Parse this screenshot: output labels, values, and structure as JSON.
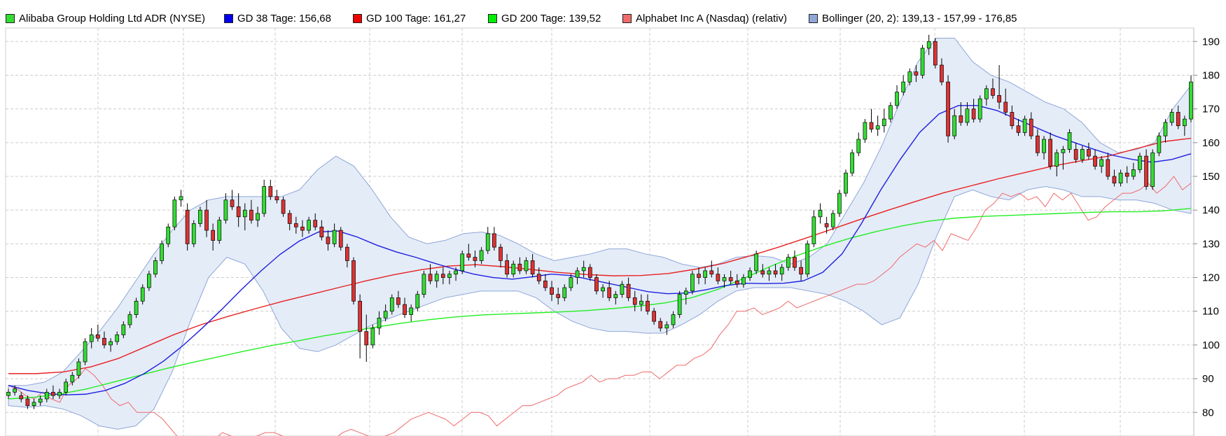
{
  "legend": [
    {
      "label": "Alibaba Group Holding Ltd ADR (NYSE)",
      "color": "#33dd33"
    },
    {
      "label": "GD 38 Tage: 156,68",
      "color": "#0000ee"
    },
    {
      "label": "GD 100 Tage: 161,27",
      "color": "#ee0000"
    },
    {
      "label": "GD 200 Tage: 139,52",
      "color": "#00ee00"
    },
    {
      "label": "Alphabet Inc A (Nasdaq) (relativ)",
      "color": "#f06a6a"
    },
    {
      "label": "Bollinger (20, 2): 139,13 - 157,99 - 176,85",
      "color": "#8fa6d6"
    }
  ],
  "chart_data": {
    "type": "candlestick",
    "y_axis_side": "right",
    "y_ticks": [
      80,
      90,
      100,
      110,
      120,
      130,
      140,
      150,
      160,
      170,
      180,
      190
    ],
    "ylim": [
      73,
      194
    ],
    "grid": true,
    "colors": {
      "up_candle": "#33dd33",
      "down_candle": "#dd3333",
      "gd38": "#1f1fe0",
      "gd100": "#e82020",
      "gd200": "#22ee22",
      "relative": "#f06a6a",
      "bollinger_fill": "#e4ecf8",
      "bollinger_edge": "#8fa6d6"
    },
    "candles": [
      [
        85,
        87,
        84,
        86
      ],
      [
        86,
        88,
        85,
        87
      ],
      [
        85,
        86,
        83,
        84
      ],
      [
        84,
        85,
        81,
        82
      ],
      [
        82,
        84,
        81,
        83
      ],
      [
        83,
        85,
        82,
        84
      ],
      [
        84,
        87,
        83,
        86
      ],
      [
        86,
        88,
        84,
        85
      ],
      [
        85,
        87,
        84,
        86
      ],
      [
        86,
        90,
        85,
        89
      ],
      [
        89,
        92,
        88,
        91
      ],
      [
        91,
        96,
        90,
        95
      ],
      [
        95,
        102,
        94,
        101
      ],
      [
        101,
        105,
        99,
        103
      ],
      [
        103,
        106,
        101,
        102
      ],
      [
        102,
        104,
        99,
        100
      ],
      [
        100,
        102,
        98,
        101
      ],
      [
        101,
        104,
        100,
        103
      ],
      [
        103,
        107,
        102,
        106
      ],
      [
        106,
        110,
        105,
        109
      ],
      [
        109,
        114,
        108,
        113
      ],
      [
        113,
        118,
        112,
        117
      ],
      [
        117,
        122,
        116,
        121
      ],
      [
        121,
        126,
        120,
        125
      ],
      [
        125,
        131,
        124,
        130
      ],
      [
        130,
        136,
        129,
        135
      ],
      [
        135,
        144,
        134,
        143
      ],
      [
        143,
        146,
        141,
        144
      ],
      [
        140,
        142,
        128,
        130
      ],
      [
        130,
        137,
        129,
        136
      ],
      [
        136,
        141,
        135,
        140
      ],
      [
        140,
        143,
        132,
        134
      ],
      [
        134,
        136,
        128,
        131
      ],
      [
        131,
        138,
        130,
        137
      ],
      [
        137,
        145,
        136,
        143
      ],
      [
        143,
        146,
        140,
        141
      ],
      [
        141,
        145,
        135,
        138
      ],
      [
        138,
        142,
        134,
        140
      ],
      [
        140,
        143,
        136,
        137
      ],
      [
        137,
        141,
        135,
        139
      ],
      [
        139,
        149,
        138,
        147
      ],
      [
        147,
        149,
        143,
        144
      ],
      [
        144,
        146,
        142,
        143
      ],
      [
        143,
        144,
        138,
        139
      ],
      [
        139,
        140,
        134,
        136
      ],
      [
        136,
        138,
        133,
        135
      ],
      [
        135,
        137,
        132,
        134
      ],
      [
        134,
        138,
        133,
        137
      ],
      [
        137,
        139,
        134,
        135
      ],
      [
        135,
        137,
        131,
        132
      ],
      [
        132,
        134,
        128,
        130
      ],
      [
        130,
        136,
        129,
        134
      ],
      [
        134,
        135,
        128,
        129
      ],
      [
        129,
        130,
        123,
        125
      ],
      [
        125,
        126,
        112,
        113
      ],
      [
        113,
        115,
        96,
        104
      ],
      [
        104,
        109,
        95,
        100
      ],
      [
        100,
        106,
        99,
        105
      ],
      [
        105,
        110,
        103,
        108
      ],
      [
        108,
        112,
        107,
        110
      ],
      [
        110,
        115,
        109,
        114
      ],
      [
        114,
        116,
        111,
        112
      ],
      [
        112,
        114,
        108,
        109
      ],
      [
        109,
        112,
        107,
        111
      ],
      [
        111,
        116,
        110,
        115
      ],
      [
        115,
        122,
        114,
        121
      ],
      [
        121,
        124,
        118,
        119
      ],
      [
        119,
        122,
        117,
        121
      ],
      [
        121,
        123,
        118,
        120
      ],
      [
        120,
        122,
        118,
        121
      ],
      [
        121,
        123,
        119,
        122
      ],
      [
        122,
        128,
        121,
        127
      ],
      [
        127,
        130,
        125,
        126
      ],
      [
        126,
        128,
        123,
        125
      ],
      [
        125,
        129,
        124,
        128
      ],
      [
        128,
        135,
        127,
        133
      ],
      [
        133,
        135,
        128,
        129
      ],
      [
        129,
        130,
        123,
        125
      ],
      [
        125,
        127,
        120,
        121
      ],
      [
        121,
        125,
        120,
        124
      ],
      [
        124,
        126,
        121,
        122
      ],
      [
        122,
        126,
        121,
        125
      ],
      [
        125,
        127,
        120,
        121
      ],
      [
        121,
        123,
        118,
        119
      ],
      [
        119,
        121,
        116,
        117
      ],
      [
        117,
        119,
        113,
        115
      ],
      [
        115,
        117,
        112,
        114
      ],
      [
        114,
        118,
        113,
        117
      ],
      [
        117,
        121,
        116,
        120
      ],
      [
        120,
        123,
        118,
        122
      ],
      [
        122,
        125,
        120,
        123
      ],
      [
        123,
        124,
        119,
        120
      ],
      [
        120,
        121,
        115,
        116
      ],
      [
        116,
        118,
        114,
        117
      ],
      [
        117,
        119,
        113,
        114
      ],
      [
        114,
        116,
        112,
        115
      ],
      [
        115,
        119,
        114,
        118
      ],
      [
        118,
        120,
        113,
        114
      ],
      [
        114,
        116,
        110,
        112
      ],
      [
        112,
        115,
        110,
        113
      ],
      [
        113,
        115,
        109,
        110
      ],
      [
        110,
        111,
        106,
        107
      ],
      [
        107,
        108,
        104,
        105
      ],
      [
        105,
        107,
        103,
        106
      ],
      [
        106,
        110,
        105,
        109
      ],
      [
        109,
        116,
        108,
        115
      ],
      [
        115,
        117,
        112,
        116
      ],
      [
        116,
        122,
        115,
        121
      ],
      [
        121,
        123,
        118,
        120
      ],
      [
        120,
        123,
        118,
        122
      ],
      [
        122,
        125,
        120,
        121
      ],
      [
        121,
        123,
        118,
        119
      ],
      [
        119,
        121,
        117,
        120
      ],
      [
        120,
        122,
        118,
        119
      ],
      [
        119,
        121,
        117,
        118
      ],
      [
        118,
        121,
        117,
        120
      ],
      [
        120,
        123,
        119,
        122
      ],
      [
        122,
        128,
        121,
        127
      ],
      [
        122,
        124,
        120,
        121
      ],
      [
        121,
        123,
        119,
        122
      ],
      [
        122,
        124,
        120,
        121
      ],
      [
        121,
        124,
        119,
        123
      ],
      [
        123,
        127,
        122,
        126
      ],
      [
        126,
        128,
        122,
        123
      ],
      [
        123,
        125,
        119,
        121
      ],
      [
        121,
        131,
        120,
        130
      ],
      [
        130,
        140,
        129,
        138
      ],
      [
        138,
        142,
        136,
        140
      ],
      [
        136,
        138,
        133,
        135
      ],
      [
        135,
        140,
        134,
        139
      ],
      [
        139,
        146,
        138,
        145
      ],
      [
        145,
        152,
        144,
        151
      ],
      [
        151,
        158,
        150,
        157
      ],
      [
        157,
        163,
        156,
        161
      ],
      [
        161,
        167,
        160,
        166
      ],
      [
        166,
        170,
        163,
        164
      ],
      [
        164,
        168,
        162,
        165
      ],
      [
        165,
        170,
        163,
        167
      ],
      [
        167,
        172,
        166,
        171
      ],
      [
        171,
        177,
        170,
        175
      ],
      [
        175,
        180,
        174,
        178
      ],
      [
        178,
        182,
        177,
        181
      ],
      [
        181,
        183,
        178,
        180
      ],
      [
        180,
        189,
        179,
        188
      ],
      [
        188,
        192,
        186,
        190
      ],
      [
        190,
        191,
        182,
        183
      ],
      [
        183,
        185,
        177,
        178
      ],
      [
        178,
        180,
        160,
        162
      ],
      [
        162,
        170,
        161,
        168
      ],
      [
        168,
        172,
        165,
        166
      ],
      [
        166,
        172,
        165,
        170
      ],
      [
        170,
        173,
        166,
        167
      ],
      [
        167,
        174,
        166,
        173
      ],
      [
        173,
        177,
        171,
        176
      ],
      [
        176,
        179,
        173,
        174
      ],
      [
        174,
        183,
        170,
        172
      ],
      [
        172,
        176,
        168,
        169
      ],
      [
        169,
        171,
        164,
        165
      ],
      [
        165,
        167,
        162,
        163
      ],
      [
        163,
        168,
        162,
        167
      ],
      [
        167,
        169,
        161,
        162
      ],
      [
        162,
        164,
        156,
        157
      ],
      [
        157,
        162,
        155,
        161
      ],
      [
        161,
        163,
        152,
        153
      ],
      [
        153,
        158,
        150,
        157
      ],
      [
        157,
        159,
        152,
        158
      ],
      [
        158,
        164,
        157,
        163
      ],
      [
        158,
        160,
        154,
        155
      ],
      [
        155,
        159,
        154,
        158
      ],
      [
        158,
        160,
        155,
        156
      ],
      [
        156,
        158,
        152,
        153
      ],
      [
        153,
        156,
        151,
        155
      ],
      [
        155,
        157,
        149,
        150
      ],
      [
        150,
        152,
        147,
        148
      ],
      [
        148,
        152,
        147,
        151
      ],
      [
        151,
        153,
        148,
        150
      ],
      [
        150,
        154,
        149,
        152
      ],
      [
        152,
        157,
        151,
        156
      ],
      [
        156,
        158,
        146,
        147
      ],
      [
        147,
        158,
        146,
        157
      ],
      [
        157,
        163,
        156,
        162
      ],
      [
        162,
        167,
        160,
        166
      ],
      [
        166,
        170,
        165,
        169
      ],
      [
        169,
        171,
        164,
        165
      ],
      [
        165,
        168,
        162,
        167
      ],
      [
        167,
        180,
        166,
        178
      ]
    ],
    "gd38": [
      88,
      86.5,
      85.6,
      85.2,
      85.4,
      86.5,
      88.6,
      91.5,
      95.2,
      99.8,
      105,
      110.5,
      116.3,
      121.8,
      126.8,
      130.8,
      133.5,
      133.8,
      132,
      129.6,
      127.6,
      126,
      124.2,
      122.5,
      121,
      120,
      119.5,
      120.2,
      121,
      120.6,
      119.4,
      118.2,
      117,
      115.8,
      115.2,
      115.4,
      116.4,
      117.6,
      118.3,
      118.2,
      118.3,
      119,
      121.5,
      127,
      136,
      146,
      155,
      163,
      168.5,
      171,
      171,
      169.5,
      167,
      164.5,
      162,
      160,
      158,
      156.2,
      155,
      154.2,
      155,
      156.7
    ],
    "gd100": [
      91.5,
      91.5,
      92,
      93.5,
      96,
      99.5,
      103,
      106,
      108.5,
      110.8,
      113,
      115,
      117,
      119,
      120.8,
      122.3,
      123.4,
      123.8,
      123.2,
      122.4,
      121.5,
      120.9,
      120.5,
      120.6,
      121.2,
      122.5,
      124.2,
      126.5,
      129,
      131.7,
      134.5,
      137.3,
      140,
      142.6,
      145.1,
      147.2,
      149.3,
      151.2,
      153.1,
      154.6,
      156,
      158.2,
      160.3,
      161.3
    ],
    "gd200": [
      84,
      84.5,
      85.5,
      87,
      89,
      91,
      93,
      94.8,
      96.5,
      98.2,
      99.8,
      101.2,
      102.7,
      104,
      105.3,
      106.5,
      107.5,
      108.3,
      108.9,
      109.2,
      109.5,
      109.8,
      110.2,
      110.8,
      111.5,
      112.5,
      114,
      116.5,
      119.8,
      123.3,
      126.5,
      129.2,
      131.6,
      133.6,
      135.3,
      136.7,
      137.6,
      138.1,
      138.4,
      138.7,
      139,
      139.3,
      139.5,
      139.5,
      139.8,
      140.5
    ],
    "relative": [
      88,
      87,
      85,
      84,
      86,
      84,
      83,
      88,
      90,
      93,
      91,
      88,
      84,
      82,
      83,
      80,
      80,
      80,
      78,
      75,
      72,
      69,
      72,
      70,
      72,
      74,
      73,
      71,
      72,
      73,
      74,
      74,
      73,
      72,
      72,
      71,
      70,
      71,
      72,
      74,
      75,
      74,
      73,
      72,
      73,
      74,
      76,
      78,
      79,
      80,
      79,
      78,
      76,
      78,
      80,
      80,
      79,
      76,
      78,
      80,
      82,
      82,
      83,
      84,
      85,
      87,
      88,
      89,
      91,
      89,
      90,
      90,
      91,
      91,
      92,
      92,
      90,
      92,
      94,
      94,
      96,
      97,
      99,
      103,
      106,
      110,
      110,
      111,
      109,
      110,
      111,
      113,
      111,
      112,
      113,
      114,
      115,
      116,
      117,
      118,
      118,
      119,
      121,
      123,
      126,
      128,
      130,
      129,
      131,
      128,
      133,
      132,
      131,
      135,
      140,
      142,
      145,
      144,
      145,
      143,
      144,
      141,
      145,
      143,
      145,
      141,
      137,
      138,
      141,
      143,
      145,
      145,
      146,
      148,
      145,
      147,
      150,
      146,
      148
    ],
    "bollinger_upper": [
      88,
      88,
      89,
      92,
      98,
      104,
      111,
      119,
      127,
      134,
      140,
      143,
      144,
      144,
      144,
      144,
      146,
      152,
      156,
      153,
      146,
      138,
      132,
      130,
      131,
      133,
      133.5,
      132.5,
      130,
      127,
      125,
      126,
      127,
      128.5,
      128.5,
      127,
      126,
      124,
      123,
      124,
      126,
      126.5,
      126,
      124,
      126,
      130,
      139,
      148,
      159,
      172,
      184,
      191,
      191,
      184,
      180,
      178,
      175,
      172,
      170,
      166,
      160,
      157,
      158,
      160,
      170,
      177
    ],
    "bollinger_lower": [
      82,
      81.5,
      82,
      81,
      79,
      76,
      75,
      76,
      81,
      92,
      107,
      120,
      126,
      124,
      116,
      105,
      99,
      98,
      100,
      103,
      106,
      108,
      110,
      112,
      114,
      115,
      116,
      116,
      116,
      114,
      110,
      107,
      105,
      104,
      104,
      103.5,
      103.5,
      106,
      109,
      113,
      116,
      117,
      117,
      117,
      116,
      115,
      113,
      110,
      106,
      108,
      118,
      132,
      144,
      146,
      144,
      143,
      146,
      147,
      146,
      144,
      144,
      143,
      143,
      142,
      140,
      139
    ]
  }
}
